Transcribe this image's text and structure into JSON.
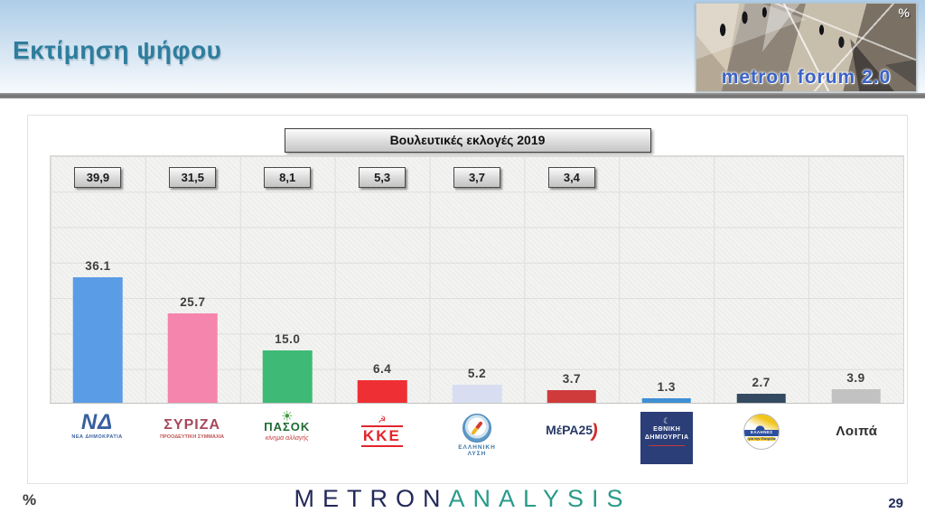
{
  "header": {
    "title": "Εκτίμηση ψήφου",
    "logo": {
      "text": "metron forum 2.0",
      "percent": "%"
    }
  },
  "chart_data": {
    "type": "bar",
    "title_box": "Βουλευτικές εκλογές 2019",
    "categories": [
      "ΝΕΑ ΔΗΜΟΚΡΑΤΙΑ",
      "ΣΥΡΙΖΑ",
      "ΠΑΣΟΚ",
      "ΚΚΕ",
      "ΕΛΛΗΝΙΚΗ ΛΥΣΗ",
      "ΜέΡΑ25",
      "ΕΘΝΙΚΗ ΔΗΜΙΟΥΡΓΙΑ",
      "ΕΛΛΗΝΕΣ",
      "Λοιπά"
    ],
    "values": [
      36.1,
      25.7,
      15.0,
      6.4,
      5.2,
      3.7,
      1.3,
      2.7,
      3.9
    ],
    "labels": [
      "36.1",
      "25.7",
      "15.0",
      "6.4",
      "5.2",
      "3.7",
      "1.3",
      "2.7",
      "3.9"
    ],
    "election_2019_boxes": [
      "39,9",
      "31,5",
      "8,1",
      "5,3",
      "3,7",
      "3,4"
    ],
    "bar_colors": [
      "#5b9ce6",
      "#f585ac",
      "#3fba76",
      "#ee3034",
      "#d9ddf1",
      "#cf3b3b",
      "#3e8fd4",
      "#344a60",
      "#c2c2c2"
    ],
    "ylim": [
      0,
      71
    ],
    "grid": true,
    "legend_position": "none",
    "xlabel": "",
    "ylabel": ""
  },
  "parties": [
    {
      "main": "ΝΔ",
      "caption": "ΝΕΑ ΔΗΜΟΚΡΑΤΙΑ"
    },
    {
      "main": "ΣΥΡΙΖΑ",
      "caption": "ΠΡΟΟΔΕΥΤΙΚΗ ΣΥΜΜΑΧΙΑ"
    },
    {
      "sun": "☀",
      "main": "ΠΑΣΟΚ",
      "caption": "κίνημα αλλαγής"
    },
    {
      "icon": "☭",
      "main": "ΚΚΕ"
    },
    {
      "line1": "ΕΛΛΗΝΙΚΗ",
      "line2": "ΛΥΣΗ"
    },
    {
      "main": "ΜέΡΑ25",
      "swoosh": ")"
    },
    {
      "moon": "☾",
      "line1": "ΕΘΝΙΚΗ",
      "line2": "ΔΗΜΙΟΥΡΓΙΑ"
    },
    {
      "main": "ΕΛΛΗΝΕΣ",
      "caption": "για την Πατρίδα"
    },
    {
      "main": "Λοιπά"
    }
  ],
  "footer": {
    "percent": "%",
    "brand_metron": "METRON",
    "brand_analysis": "ANALYSIS",
    "page": "29"
  }
}
